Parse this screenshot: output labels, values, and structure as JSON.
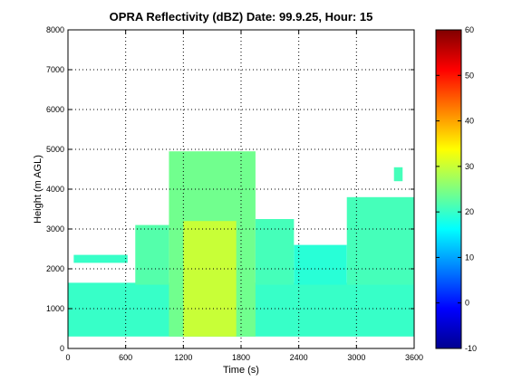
{
  "chart_data": {
    "type": "heatmap",
    "title": "OPRA Reflectivity (dBZ)  Date: 99.9.25, Hour: 15",
    "xlabel": "Time (s)",
    "ylabel": "Height (m AGL)",
    "xlim": [
      0,
      3600
    ],
    "ylim": [
      0,
      8000
    ],
    "x_ticks": [
      "0",
      "600",
      "1200",
      "1800",
      "2400",
      "3000",
      "3600"
    ],
    "y_ticks": [
      "0",
      "1000",
      "2000",
      "3000",
      "4000",
      "5000",
      "6000",
      "7000",
      "8000"
    ],
    "grid": true,
    "colorbar": {
      "min": -10,
      "max": 60,
      "colormap": "jet",
      "ticks": [
        "-10",
        "0",
        "10",
        "20",
        "30",
        "40",
        "50",
        "60"
      ]
    },
    "echo_features": [
      {
        "x_start": 0,
        "x_end": 3600,
        "height_bottom": 300,
        "height_top": 1650,
        "value_dbz": 20
      },
      {
        "x_start": 60,
        "x_end": 620,
        "height_bottom": 2150,
        "height_top": 2350,
        "value_dbz": 20
      },
      {
        "x_start": 700,
        "x_end": 1050,
        "height_bottom": 1600,
        "height_top": 3100,
        "value_dbz": 22
      },
      {
        "x_start": 1050,
        "x_end": 1950,
        "height_bottom": 300,
        "height_top": 4950,
        "value_dbz": 24
      },
      {
        "x_start": 1200,
        "x_end": 1750,
        "height_bottom": 300,
        "height_top": 3200,
        "value_dbz": 30
      },
      {
        "x_start": 1950,
        "x_end": 2350,
        "height_bottom": 1600,
        "height_top": 3250,
        "value_dbz": 21
      },
      {
        "x_start": 2350,
        "x_end": 2900,
        "height_bottom": 1600,
        "height_top": 2600,
        "value_dbz": 19
      },
      {
        "x_start": 2900,
        "x_end": 3600,
        "height_bottom": 1600,
        "height_top": 3800,
        "value_dbz": 21
      },
      {
        "x_start": 3390,
        "x_end": 3480,
        "height_bottom": 4200,
        "height_top": 4550,
        "value_dbz": 21
      }
    ]
  }
}
